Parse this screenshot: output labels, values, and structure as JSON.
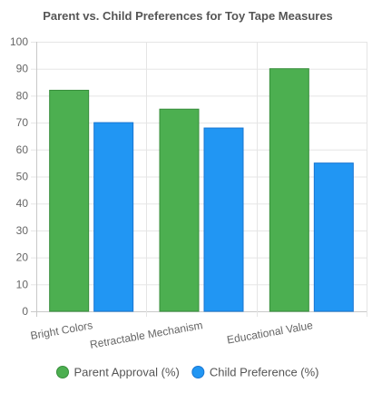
{
  "chart_data": {
    "type": "bar",
    "title": "Parent vs. Child Preferences for Toy Tape Measures",
    "categories": [
      "Bright Colors",
      "Retractable Mechanism",
      "Educational Value"
    ],
    "series": [
      {
        "name": "Parent Approval (%)",
        "values": [
          82,
          75,
          90
        ],
        "fill": "#4CAF50",
        "stroke": "#388E3C"
      },
      {
        "name": "Child Preference (%)",
        "values": [
          70,
          68,
          55
        ],
        "fill": "#2196F3",
        "stroke": "#1976D2"
      }
    ],
    "ylim": [
      0,
      100
    ],
    "yticks": [
      0,
      10,
      20,
      30,
      40,
      50,
      60,
      70,
      80,
      90,
      100
    ],
    "grid": true,
    "legend_position": "bottom",
    "xlabel": "",
    "ylabel": ""
  }
}
